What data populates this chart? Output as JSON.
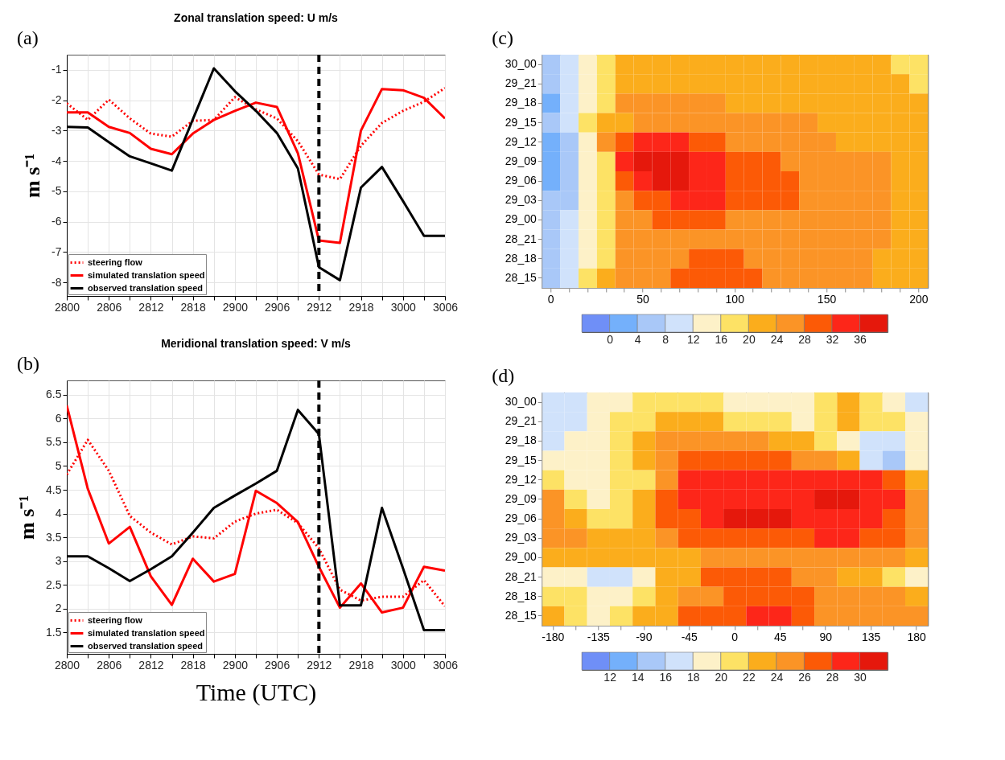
{
  "chart_data": [
    {
      "type": "line",
      "title": "Zonal translation speed: U m/s",
      "ylabel": "m s⁻¹",
      "annotations": [
        "(a)"
      ],
      "categories": [
        "2800",
        null,
        "2806",
        null,
        "2812",
        null,
        "2818",
        null,
        "2900",
        null,
        "2906",
        null,
        "2912",
        null,
        "2918",
        null,
        "3000",
        null,
        "3006"
      ],
      "ylim": [
        -8.45,
        -0.5
      ],
      "yticks": [
        -8,
        -7,
        -6,
        -5,
        -4,
        -3,
        -2,
        -1
      ],
      "grid": true,
      "legend": "bottom left",
      "ref_lines": [
        {
          "axis": "x",
          "value": "2912",
          "color": "#000000",
          "line_style": "dashed"
        }
      ],
      "series": [
        {
          "name": "steering flow",
          "color": "#ff0000",
          "line_style": "dotted",
          "values": [
            -2.1,
            -2.65,
            -1.98,
            -2.6,
            -3.1,
            -3.2,
            -2.68,
            -2.65,
            -1.9,
            -2.3,
            -2.6,
            -3.35,
            -4.45,
            -4.6,
            -3.5,
            -2.75,
            -2.35,
            -2.05,
            -1.6
          ]
        },
        {
          "name": "simulated translation speed",
          "color": "#ff0000",
          "line_style": "solid",
          "values": [
            -2.4,
            -2.4,
            -2.88,
            -3.08,
            -3.6,
            -3.78,
            -3.1,
            -2.65,
            -2.35,
            -2.08,
            -2.22,
            -3.75,
            -6.62,
            -6.7,
            -3.0,
            -1.63,
            -1.67,
            -1.92,
            -2.6
          ]
        },
        {
          "name": "observed translation speed",
          "color": "#000000",
          "line_style": "solid",
          "values": [
            -2.88,
            -2.9,
            -3.38,
            -3.85,
            -4.08,
            -4.32,
            -2.63,
            -0.95,
            -1.7,
            -2.35,
            -3.08,
            -4.25,
            -7.5,
            -7.93,
            -4.88,
            -4.2,
            -5.32,
            -6.47,
            -6.47
          ]
        }
      ]
    },
    {
      "type": "heatmap",
      "annotations": [
        "(c)"
      ],
      "categories": [
        "0",
        null,
        null,
        null,
        null,
        "50",
        null,
        null,
        null,
        null,
        "100",
        null,
        null,
        null,
        null,
        "150",
        null,
        null,
        null,
        null,
        "200"
      ],
      "y_categories": [
        "30_00",
        "29_21",
        "29_18",
        "29_15",
        "29_12",
        "29_09",
        "29_06",
        "29_03",
        "29_00",
        "28_21",
        "28_18",
        "28_15"
      ],
      "clim": [
        -4,
        40
      ],
      "cticks": [
        0,
        4,
        8,
        12,
        16,
        20,
        24,
        28,
        32,
        36
      ],
      "colors": [
        "#6f8ff7",
        "#74b0fb",
        "#a9c8f8",
        "#d0e2fb",
        "#fdf1c8",
        "#fde265",
        "#fbad1c",
        "#fb9426",
        "#fc5a06",
        "#fd2619",
        "#e5180c"
      ],
      "cells": [
        [
          6,
          10,
          14,
          18,
          22,
          22,
          22,
          22,
          22,
          22,
          22,
          22,
          22,
          22,
          22,
          22,
          22,
          22,
          22,
          18,
          18
        ],
        [
          6,
          10,
          14,
          18,
          22,
          22,
          22,
          22,
          22,
          22,
          22,
          22,
          22,
          22,
          22,
          22,
          22,
          22,
          22,
          22,
          18
        ],
        [
          2,
          10,
          14,
          18,
          26,
          26,
          26,
          26,
          26,
          26,
          22,
          22,
          22,
          22,
          22,
          22,
          22,
          22,
          22,
          22,
          22
        ],
        [
          6,
          10,
          18,
          22,
          22,
          26,
          26,
          26,
          26,
          26,
          26,
          26,
          26,
          26,
          26,
          22,
          22,
          22,
          22,
          22,
          22
        ],
        [
          2,
          6,
          14,
          26,
          30,
          34,
          34,
          34,
          30,
          30,
          26,
          26,
          26,
          26,
          26,
          26,
          22,
          22,
          22,
          22,
          22
        ],
        [
          2,
          6,
          14,
          18,
          34,
          38,
          38,
          38,
          34,
          34,
          30,
          30,
          30,
          26,
          26,
          26,
          26,
          26,
          26,
          22,
          22
        ],
        [
          2,
          6,
          14,
          18,
          30,
          34,
          38,
          38,
          34,
          34,
          30,
          30,
          30,
          30,
          26,
          26,
          26,
          26,
          26,
          22,
          22
        ],
        [
          6,
          6,
          14,
          18,
          26,
          30,
          30,
          34,
          34,
          34,
          30,
          30,
          30,
          30,
          26,
          26,
          26,
          26,
          26,
          22,
          22
        ],
        [
          6,
          10,
          14,
          18,
          26,
          26,
          30,
          30,
          30,
          30,
          26,
          26,
          26,
          26,
          26,
          26,
          26,
          26,
          26,
          22,
          22
        ],
        [
          6,
          10,
          14,
          18,
          26,
          26,
          26,
          26,
          26,
          26,
          26,
          26,
          26,
          26,
          26,
          26,
          26,
          26,
          26,
          22,
          22
        ],
        [
          6,
          10,
          14,
          18,
          26,
          26,
          26,
          26,
          30,
          30,
          30,
          26,
          26,
          26,
          26,
          26,
          26,
          26,
          22,
          22,
          22
        ],
        [
          6,
          10,
          18,
          22,
          26,
          26,
          26,
          30,
          30,
          30,
          30,
          30,
          26,
          26,
          26,
          26,
          26,
          26,
          22,
          22,
          22
        ]
      ]
    },
    {
      "type": "line",
      "title": "Meridional translation speed: V m/s",
      "xlabel": "Time (UTC)",
      "ylabel": "m s⁻¹",
      "annotations": [
        "(b)"
      ],
      "categories": [
        "2800",
        null,
        "2806",
        null,
        "2812",
        null,
        "2818",
        null,
        "2900",
        null,
        "2906",
        null,
        "2912",
        null,
        "2918",
        null,
        "3000",
        null,
        "3006"
      ],
      "ylim": [
        1.05,
        6.8
      ],
      "yticks": [
        1.5,
        2,
        2.5,
        3,
        3.5,
        4,
        4.5,
        5,
        5.5,
        6,
        6.5
      ],
      "grid": true,
      "legend": "bottom left",
      "ref_lines": [
        {
          "axis": "x",
          "value": "2912",
          "color": "#000000",
          "line_style": "dashed"
        }
      ],
      "series": [
        {
          "name": "steering flow",
          "color": "#ff0000",
          "line_style": "dotted",
          "values": [
            4.82,
            5.55,
            4.9,
            3.95,
            3.6,
            3.35,
            3.52,
            3.48,
            3.83,
            4.0,
            4.08,
            3.8,
            3.27,
            2.4,
            2.17,
            2.25,
            2.25,
            2.6,
            2.05
          ]
        },
        {
          "name": "simulated translation speed",
          "color": "#ff0000",
          "line_style": "solid",
          "values": [
            6.27,
            4.52,
            3.37,
            3.72,
            2.68,
            2.08,
            3.05,
            2.57,
            2.73,
            4.48,
            4.22,
            3.82,
            2.88,
            2.02,
            2.53,
            1.92,
            2.02,
            2.88,
            2.8
          ]
        },
        {
          "name": "observed translation speed",
          "color": "#000000",
          "line_style": "solid",
          "values": [
            3.1,
            3.1,
            2.85,
            2.58,
            2.83,
            3.1,
            3.6,
            4.12,
            4.38,
            4.63,
            4.9,
            6.18,
            5.67,
            2.07,
            2.07,
            4.12,
            2.85,
            1.55,
            1.55
          ]
        }
      ]
    },
    {
      "type": "heatmap",
      "annotations": [
        "(d)"
      ],
      "categories": [
        "-180",
        null,
        "-135",
        null,
        "-90",
        null,
        "-45",
        null,
        "0",
        null,
        "45",
        null,
        "90",
        null,
        "135",
        null,
        "180"
      ],
      "y_categories": [
        "30_00",
        "29_21",
        "29_18",
        "29_15",
        "29_12",
        "29_09",
        "29_06",
        "29_03",
        "29_00",
        "28_21",
        "28_18",
        "28_15"
      ],
      "clim": [
        10,
        32
      ],
      "cticks": [
        12,
        14,
        16,
        18,
        20,
        22,
        24,
        26,
        28,
        30
      ],
      "colors": [
        "#6f8ff7",
        "#74b0fb",
        "#a9c8f8",
        "#d0e2fb",
        "#fdf1c8",
        "#fde265",
        "#fbad1c",
        "#fb9426",
        "#fc5a06",
        "#fd2619",
        "#e5180c"
      ],
      "cells": [
        [
          17,
          17,
          19,
          19,
          21,
          21,
          21,
          21,
          19,
          19,
          19,
          19,
          21,
          23,
          21,
          19,
          17
        ],
        [
          17,
          17,
          19,
          21,
          21,
          23,
          23,
          23,
          21,
          21,
          21,
          19,
          21,
          23,
          21,
          21,
          19
        ],
        [
          17,
          19,
          19,
          21,
          23,
          25,
          25,
          25,
          25,
          25,
          23,
          23,
          21,
          19,
          17,
          17,
          19
        ],
        [
          19,
          19,
          19,
          21,
          23,
          25,
          27,
          27,
          27,
          27,
          27,
          25,
          25,
          23,
          17,
          15,
          19
        ],
        [
          21,
          19,
          19,
          21,
          21,
          25,
          29,
          29,
          29,
          29,
          29,
          29,
          29,
          29,
          29,
          27,
          23
        ],
        [
          25,
          21,
          19,
          21,
          23,
          27,
          29,
          29,
          29,
          29,
          29,
          29,
          31,
          31,
          29,
          29,
          25
        ],
        [
          25,
          23,
          21,
          21,
          23,
          27,
          27,
          29,
          31,
          31,
          31,
          29,
          29,
          29,
          29,
          27,
          25
        ],
        [
          25,
          25,
          23,
          23,
          23,
          25,
          27,
          27,
          27,
          27,
          27,
          27,
          29,
          29,
          27,
          27,
          25
        ],
        [
          23,
          23,
          23,
          23,
          23,
          23,
          23,
          25,
          25,
          25,
          25,
          25,
          25,
          25,
          25,
          25,
          23
        ],
        [
          19,
          19,
          17,
          17,
          19,
          23,
          23,
          27,
          27,
          27,
          27,
          25,
          25,
          23,
          23,
          21,
          19
        ],
        [
          21,
          21,
          19,
          19,
          21,
          23,
          25,
          25,
          27,
          27,
          27,
          27,
          25,
          25,
          25,
          25,
          23
        ],
        [
          23,
          21,
          19,
          21,
          23,
          23,
          27,
          27,
          27,
          29,
          29,
          27,
          25,
          25,
          25,
          25,
          25
        ]
      ]
    }
  ]
}
